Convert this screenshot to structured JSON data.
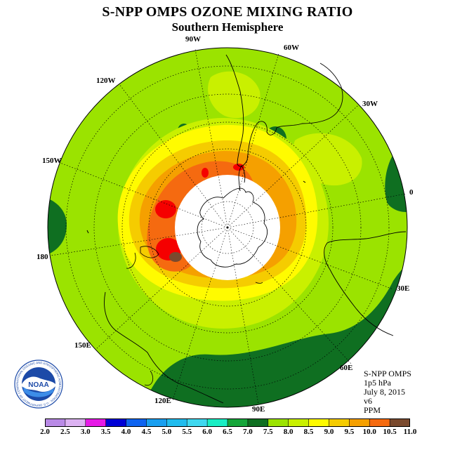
{
  "header": {
    "title": "S-NPP OMPS OZONE MIXING RATIO",
    "subtitle": "Southern Hemisphere"
  },
  "map": {
    "projection": "polar stereographic, south pole centered",
    "longitude_labels": [
      "90W",
      "60W",
      "120W",
      "30W",
      "150W",
      "0",
      "180",
      "30E",
      "150E",
      "60E",
      "120E",
      "90E"
    ],
    "polar_mask": "white circle (no data)",
    "field_description": "ozone mixing ratio, highest (10-11 PPM) ring around the polar mask, decreasing to 6.5-7 PPM at edges"
  },
  "info": {
    "instrument": "S-NPP OMPS",
    "level": "1p5 hPa",
    "date": "July 8, 2015",
    "version": "v6",
    "units": "PPM"
  },
  "logo": {
    "text": "NOAA",
    "ring_text": "NATIONAL OCEANIC AND ATMOSPHERIC ADMINISTRATION · U.S. DEPARTMENT OF COMMERCE"
  },
  "colorbar": {
    "ticks": [
      "2.0",
      "2.5",
      "3.0",
      "3.5",
      "4.0",
      "4.5",
      "5.0",
      "5.5",
      "6.0",
      "6.5",
      "7.0",
      "7.5",
      "8.0",
      "8.5",
      "9.0",
      "9.5",
      "10.0",
      "10.5",
      "11.0"
    ],
    "colors": [
      "#b98ae6",
      "#dcb2f2",
      "#e619e6",
      "#0000d6",
      "#0f64f0",
      "#199ff0",
      "#21bcee",
      "#3fd8f0",
      "#19eec4",
      "#15a63a",
      "#0f6f21",
      "#9be300",
      "#c9f000",
      "#fffb00",
      "#f5cc00",
      "#f5a000",
      "#f56a10",
      "#f50000",
      "#7a4a2e"
    ]
  }
}
